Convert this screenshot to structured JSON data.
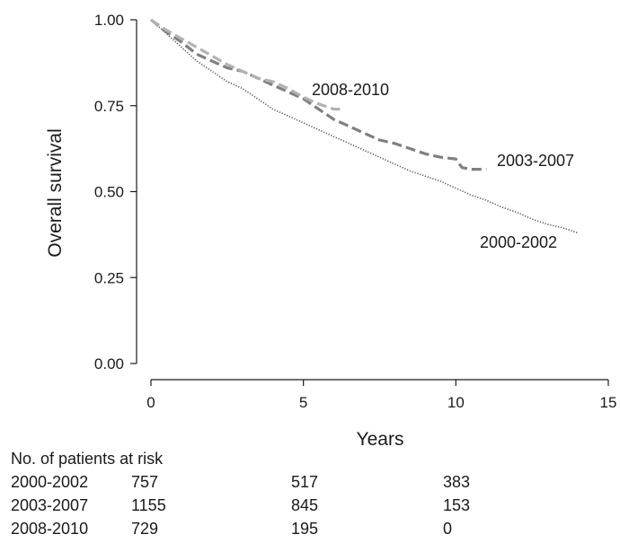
{
  "chart_data": {
    "type": "line",
    "xlabel": "Years",
    "ylabel": "Overall survival",
    "xlim": [
      0,
      15
    ],
    "ylim": [
      0,
      1
    ],
    "x_ticks": [
      "0",
      "5",
      "10",
      "15"
    ],
    "y_ticks": [
      "0.00",
      "0.25",
      "0.50",
      "0.75",
      "1.00"
    ],
    "grid": false,
    "legend": "none (series labelled inline)",
    "series": [
      {
        "name": "2000-2002",
        "style": "dotted",
        "color": "#555555",
        "x": [
          0,
          0.5,
          1,
          1.5,
          2,
          2.5,
          3,
          3.5,
          4,
          4.5,
          5,
          5.5,
          6,
          6.5,
          7,
          7.5,
          8,
          8.5,
          9,
          9.5,
          10,
          10.5,
          11,
          11.5,
          12,
          12.5,
          13,
          13.5,
          14
        ],
        "y": [
          1.0,
          0.96,
          0.92,
          0.88,
          0.85,
          0.82,
          0.8,
          0.77,
          0.74,
          0.72,
          0.7,
          0.68,
          0.66,
          0.64,
          0.62,
          0.6,
          0.58,
          0.56,
          0.545,
          0.53,
          0.51,
          0.49,
          0.475,
          0.455,
          0.44,
          0.42,
          0.405,
          0.395,
          0.38
        ]
      },
      {
        "name": "2003-2007",
        "style": "dashed",
        "color": "#808080",
        "x": [
          0,
          0.5,
          1,
          1.5,
          2,
          2.5,
          3,
          3.5,
          4,
          4.5,
          5,
          5.5,
          6,
          6.5,
          7,
          7.5,
          8,
          8.5,
          9,
          9.5,
          10,
          10.2,
          10.5,
          11
        ],
        "y": [
          1.0,
          0.965,
          0.935,
          0.9,
          0.88,
          0.86,
          0.85,
          0.83,
          0.81,
          0.79,
          0.77,
          0.74,
          0.71,
          0.69,
          0.67,
          0.65,
          0.64,
          0.625,
          0.61,
          0.6,
          0.595,
          0.57,
          0.565,
          0.565
        ]
      },
      {
        "name": "2008-2010",
        "style": "dashed",
        "color": "#b3b3b3",
        "x": [
          0,
          0.5,
          1,
          1.5,
          2,
          2.5,
          3,
          3.5,
          4,
          4.5,
          5,
          5.5,
          6,
          6.2
        ],
        "y": [
          1.0,
          0.97,
          0.945,
          0.92,
          0.895,
          0.87,
          0.85,
          0.83,
          0.82,
          0.8,
          0.775,
          0.755,
          0.74,
          0.74
        ]
      }
    ]
  },
  "risk_table": {
    "heading": "No. of patients at risk",
    "rows": [
      {
        "label": "2000-2002",
        "values": [
          "757",
          "517",
          "383"
        ]
      },
      {
        "label": "2003-2007",
        "values": [
          "1155",
          "845",
          "153"
        ]
      },
      {
        "label": "2008-2010",
        "values": [
          "729",
          "195",
          "0"
        ]
      }
    ]
  }
}
